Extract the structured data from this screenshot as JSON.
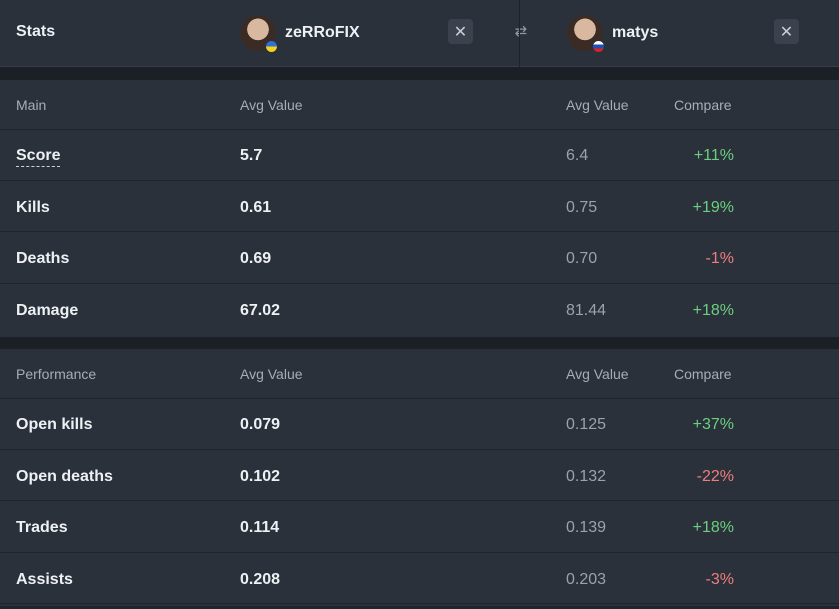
{
  "header": {
    "title": "Stats",
    "player1": {
      "name": "zeRRoFIX",
      "flag": "flag-ua"
    },
    "player2": {
      "name": "matys",
      "flag": "flag-sk"
    },
    "close_symbol": "✕",
    "swap_symbol": "⇄"
  },
  "sections": [
    {
      "title": "Main",
      "col_avg1": "Avg Value",
      "col_avg2": "Avg Value",
      "col_compare": "Compare",
      "rows": [
        {
          "label": "Score",
          "v1": "5.7",
          "v2": "6.4",
          "compare": "+11%"
        },
        {
          "label": "Kills",
          "v1": "0.61",
          "v2": "0.75",
          "compare": "+19%"
        },
        {
          "label": "Deaths",
          "v1": "0.69",
          "v2": "0.70",
          "compare": "-1%"
        },
        {
          "label": "Damage",
          "v1": "67.02",
          "v2": "81.44",
          "compare": "+18%"
        }
      ]
    },
    {
      "title": "Performance",
      "col_avg1": "Avg Value",
      "col_avg2": "Avg Value",
      "col_compare": "Compare",
      "rows": [
        {
          "label": "Open kills",
          "v1": "0.079",
          "v2": "0.125",
          "compare": "+37%"
        },
        {
          "label": "Open deaths",
          "v1": "0.102",
          "v2": "0.132",
          "compare": "-22%"
        },
        {
          "label": "Trades",
          "v1": "0.114",
          "v2": "0.139",
          "compare": "+18%"
        },
        {
          "label": "Assists",
          "v1": "0.208",
          "v2": "0.203",
          "compare": "-3%"
        }
      ]
    }
  ],
  "colors": {
    "positive": "#6ccf7f",
    "negative": "#ef7d7d",
    "panel": "#2a313b",
    "background": "#1f252d"
  }
}
